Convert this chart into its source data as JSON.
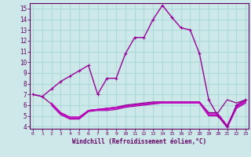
{
  "series": [
    {
      "x": [
        0,
        1,
        2,
        3,
        4,
        5,
        6,
        7,
        8,
        9,
        10,
        11,
        12,
        13,
        14,
        15,
        16,
        17,
        18,
        19,
        20,
        21,
        22,
        23
      ],
      "y": [
        7.0,
        6.8,
        7.5,
        8.2,
        8.7,
        9.2,
        9.7,
        7.0,
        8.5,
        8.5,
        10.8,
        12.3,
        12.3,
        14.0,
        15.3,
        14.2,
        13.2,
        13.0,
        10.8,
        6.5,
        5.0,
        4.0,
        6.0,
        6.5
      ],
      "color": "#990099",
      "lw": 1.0,
      "marker": "+"
    },
    {
      "x": [
        0,
        1,
        2,
        3,
        4,
        5,
        6,
        7,
        8,
        9,
        10,
        11,
        12,
        13,
        14,
        15,
        16,
        17,
        18,
        19,
        20,
        21,
        22,
        23
      ],
      "y": [
        7.0,
        6.8,
        6.1,
        5.3,
        4.8,
        4.8,
        5.5,
        5.6,
        5.7,
        5.8,
        6.0,
        6.1,
        6.2,
        6.3,
        6.3,
        6.3,
        6.3,
        6.3,
        6.3,
        5.3,
        5.3,
        6.5,
        6.2,
        6.5
      ],
      "color": "#880088",
      "lw": 0.9,
      "marker": null
    },
    {
      "x": [
        2,
        3,
        4,
        5,
        6,
        7,
        8,
        9,
        10,
        11,
        12,
        13,
        14,
        15,
        16,
        17,
        18,
        19,
        20,
        21,
        22,
        23
      ],
      "y": [
        6.0,
        5.1,
        4.7,
        4.7,
        5.4,
        5.5,
        5.5,
        5.6,
        5.8,
        5.9,
        6.0,
        6.1,
        6.2,
        6.2,
        6.2,
        6.2,
        6.2,
        5.0,
        5.0,
        3.9,
        5.7,
        6.2
      ],
      "color": "#aa00aa",
      "lw": 0.9,
      "marker": null
    },
    {
      "x": [
        2,
        3,
        4,
        5,
        6,
        7,
        8,
        9,
        10,
        11,
        12,
        13,
        14,
        15,
        16,
        17,
        18,
        19,
        20,
        21,
        22,
        23
      ],
      "y": [
        6.1,
        5.2,
        4.8,
        4.8,
        5.5,
        5.6,
        5.6,
        5.7,
        5.9,
        6.0,
        6.1,
        6.2,
        6.2,
        6.2,
        6.2,
        6.2,
        6.2,
        5.1,
        5.1,
        4.0,
        5.8,
        6.3
      ],
      "color": "#cc00cc",
      "lw": 0.9,
      "marker": null
    },
    {
      "x": [
        2,
        3,
        4,
        5,
        6,
        7,
        8,
        9,
        10,
        11,
        12,
        13,
        14,
        15,
        16,
        17,
        18,
        19,
        20,
        21,
        22,
        23
      ],
      "y": [
        6.2,
        5.3,
        4.9,
        4.9,
        5.5,
        5.6,
        5.7,
        5.8,
        5.9,
        6.0,
        6.1,
        6.2,
        6.3,
        6.3,
        6.3,
        6.3,
        6.3,
        5.2,
        5.2,
        4.1,
        5.9,
        6.4
      ],
      "color": "#bb00bb",
      "lw": 0.9,
      "marker": null
    }
  ],
  "xlim": [
    -0.3,
    23.3
  ],
  "ylim": [
    3.8,
    15.5
  ],
  "yticks": [
    4,
    5,
    6,
    7,
    8,
    9,
    10,
    11,
    12,
    13,
    14,
    15
  ],
  "xticks": [
    0,
    1,
    2,
    3,
    4,
    5,
    6,
    7,
    8,
    9,
    10,
    11,
    12,
    13,
    14,
    15,
    16,
    17,
    18,
    19,
    20,
    21,
    22,
    23
  ],
  "xlabel": "Windchill (Refroidissement éolien,°C)",
  "bg_color": "#cce8e8",
  "grid_color": "#b0d8d8",
  "axis_color": "#660066",
  "label_color": "#660066",
  "tick_color": "#660066"
}
